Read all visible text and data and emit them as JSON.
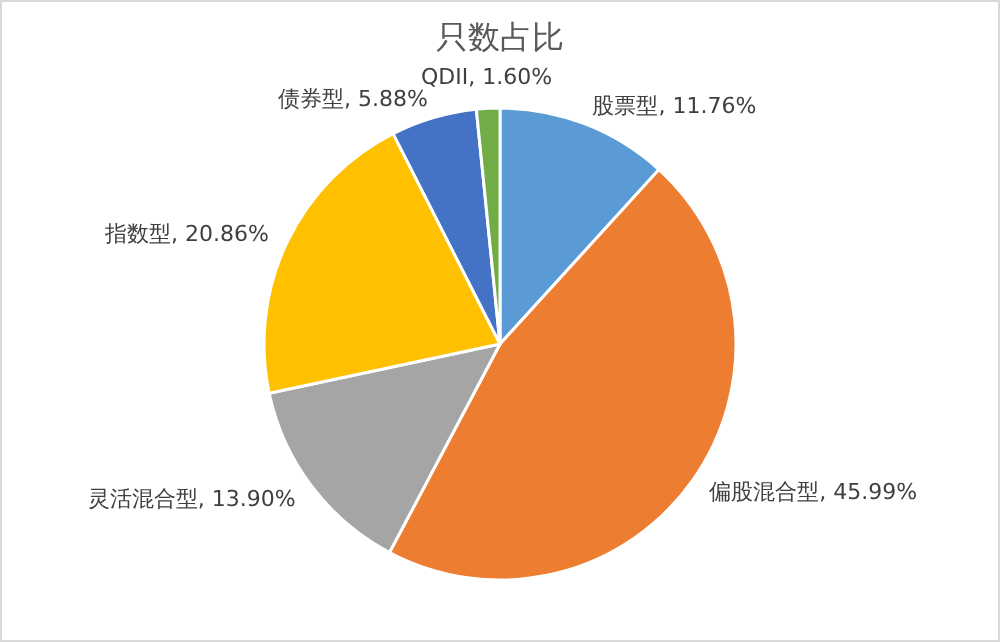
{
  "chart_data": {
    "type": "pie",
    "title": "只数占比",
    "categories": [
      "股票型",
      "偏股混合型",
      "灵活混合型",
      "指数型",
      "债券型",
      "QDII"
    ],
    "values": [
      11.76,
      45.99,
      13.9,
      20.86,
      5.88,
      1.6
    ],
    "value_labels": [
      "11.76%",
      "45.99%",
      "13.90%",
      "20.86%",
      "5.88%",
      "1.60%"
    ],
    "colors": [
      "#5b9bd5",
      "#ed7d31",
      "#a5a5a5",
      "#ffc000",
      "#4472c4",
      "#70ad47"
    ]
  }
}
